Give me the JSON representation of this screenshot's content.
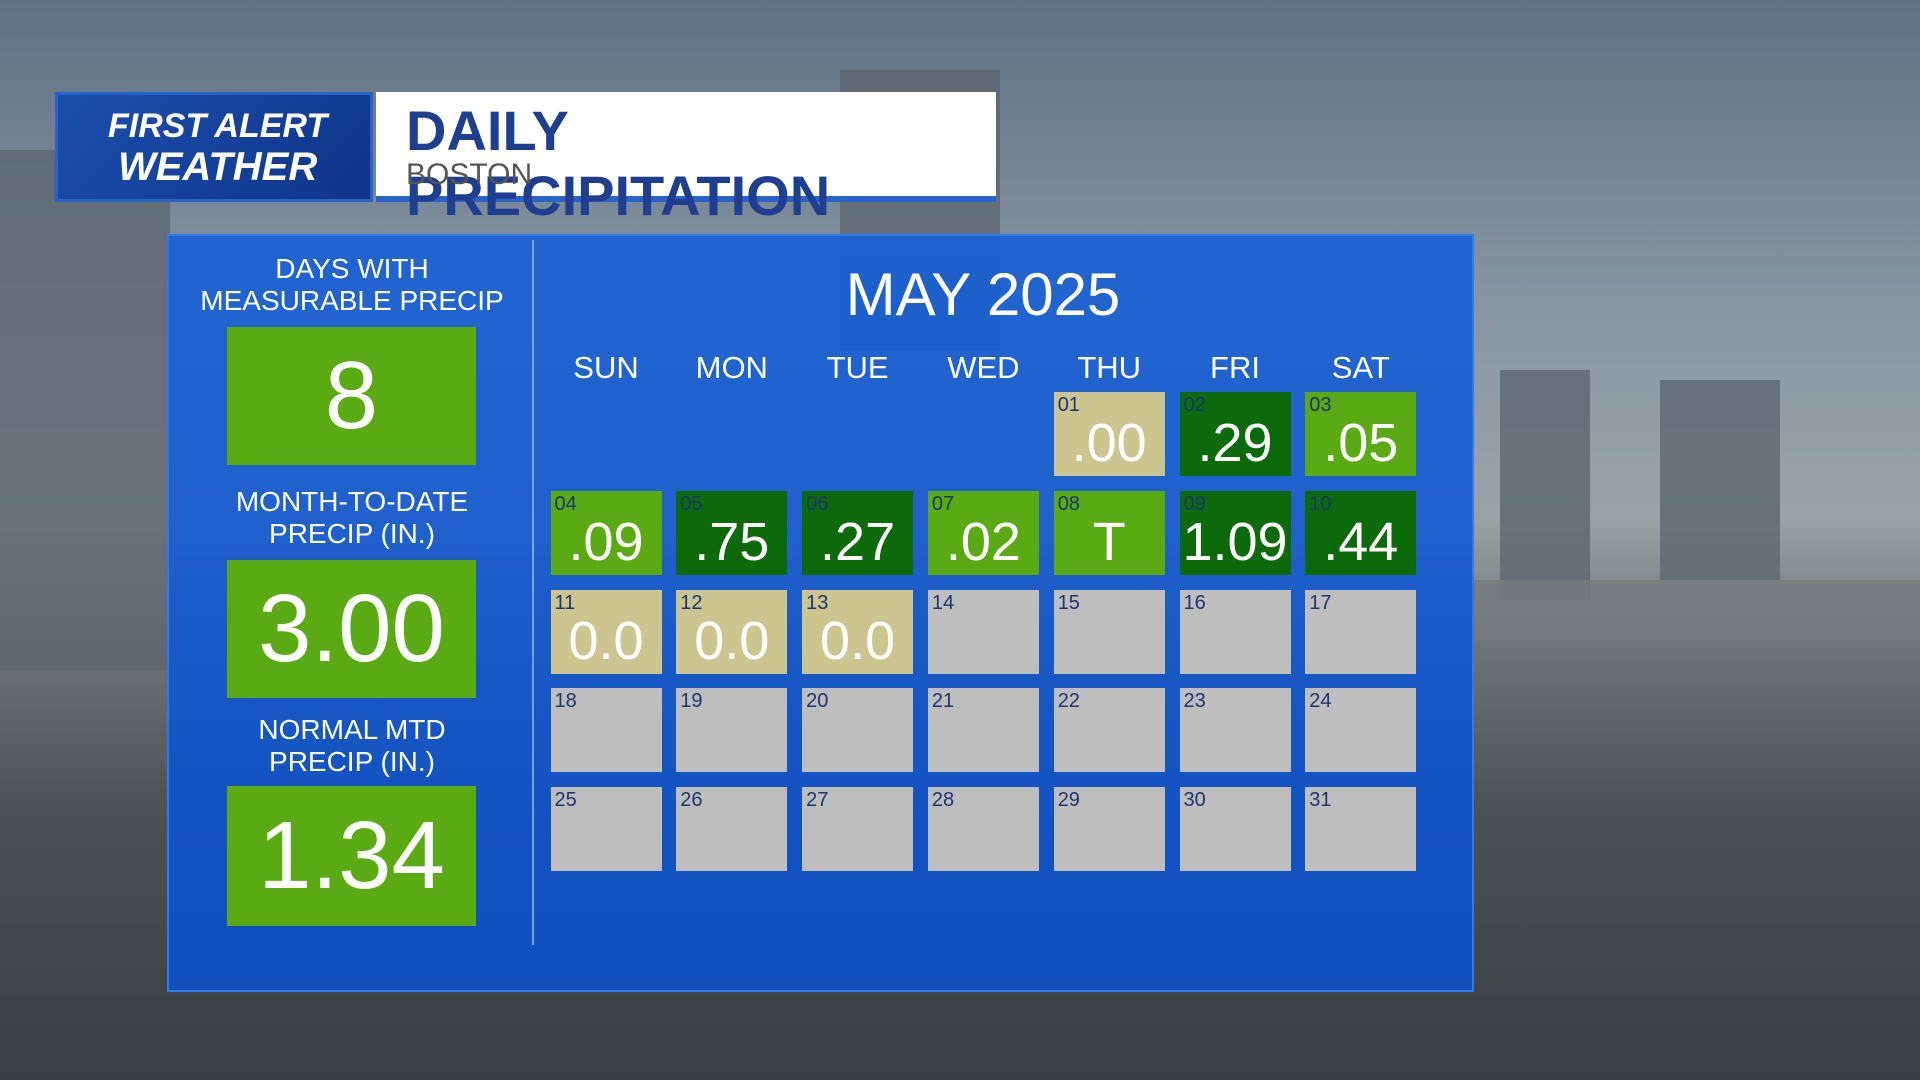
{
  "header": {
    "logo": {
      "line1": "FIRST ALERT",
      "line2": "WEATHER"
    },
    "title": "DAILY PRECIPITATION",
    "subtitle": "BOSTON"
  },
  "stats": [
    {
      "label": [
        "DAYS WITH",
        "MEASURABLE PRECIP"
      ],
      "value": "8"
    },
    {
      "label": [
        "MONTH-TO-DATE",
        "PRECIP (IN.)"
      ],
      "value": "3.00"
    },
    {
      "label": [
        "NORMAL MTD",
        "PRECIP (IN.)"
      ],
      "value": "1.34"
    }
  ],
  "calendar": {
    "title": "MAY 2025",
    "weekdays": [
      "SUN",
      "MON",
      "TUE",
      "WED",
      "THU",
      "FRI",
      "SAT"
    ],
    "weeks": [
      [
        null,
        null,
        null,
        null,
        {
          "day": "01",
          "value": ".00",
          "color": "#cdc58f"
        },
        {
          "day": "02",
          "value": ".29",
          "color": "#0c6a0b"
        },
        {
          "day": "03",
          "value": ".05",
          "color": "#5aab13"
        }
      ],
      [
        {
          "day": "04",
          "value": ".09",
          "color": "#5aab13"
        },
        {
          "day": "05",
          "value": ".75",
          "color": "#0c6a0b"
        },
        {
          "day": "06",
          "value": ".27",
          "color": "#0c6a0b"
        },
        {
          "day": "07",
          "value": ".02",
          "color": "#5aab13"
        },
        {
          "day": "08",
          "value": "T",
          "color": "#5aab13"
        },
        {
          "day": "09",
          "value": "1.09",
          "color": "#0c6a0b"
        },
        {
          "day": "10",
          "value": ".44",
          "color": "#0c6a0b"
        }
      ],
      [
        {
          "day": "11",
          "value": "0.0",
          "color": "#cdc58f"
        },
        {
          "day": "12",
          "value": "0.0",
          "color": "#cdc58f"
        },
        {
          "day": "13",
          "value": "0.0",
          "color": "#cdc58f"
        },
        {
          "day": "14",
          "color": "#bebebe"
        },
        {
          "day": "15",
          "color": "#bebebe"
        },
        {
          "day": "16",
          "color": "#bebebe"
        },
        {
          "day": "17",
          "color": "#bebebe"
        }
      ],
      [
        {
          "day": "18",
          "color": "#bebebe"
        },
        {
          "day": "19",
          "color": "#bebebe"
        },
        {
          "day": "20",
          "color": "#bebebe"
        },
        {
          "day": "21",
          "color": "#bebebe"
        },
        {
          "day": "22",
          "color": "#bebebe"
        },
        {
          "day": "23",
          "color": "#bebebe"
        },
        {
          "day": "24",
          "color": "#bebebe"
        }
      ],
      [
        {
          "day": "25",
          "color": "#bebebe"
        },
        {
          "day": "26",
          "color": "#bebebe"
        },
        {
          "day": "27",
          "color": "#bebebe"
        },
        {
          "day": "28",
          "color": "#bebebe"
        },
        {
          "day": "29",
          "color": "#bebebe"
        },
        {
          "day": "30",
          "color": "#bebebe"
        },
        {
          "day": "31",
          "color": "#bebebe"
        }
      ]
    ]
  }
}
